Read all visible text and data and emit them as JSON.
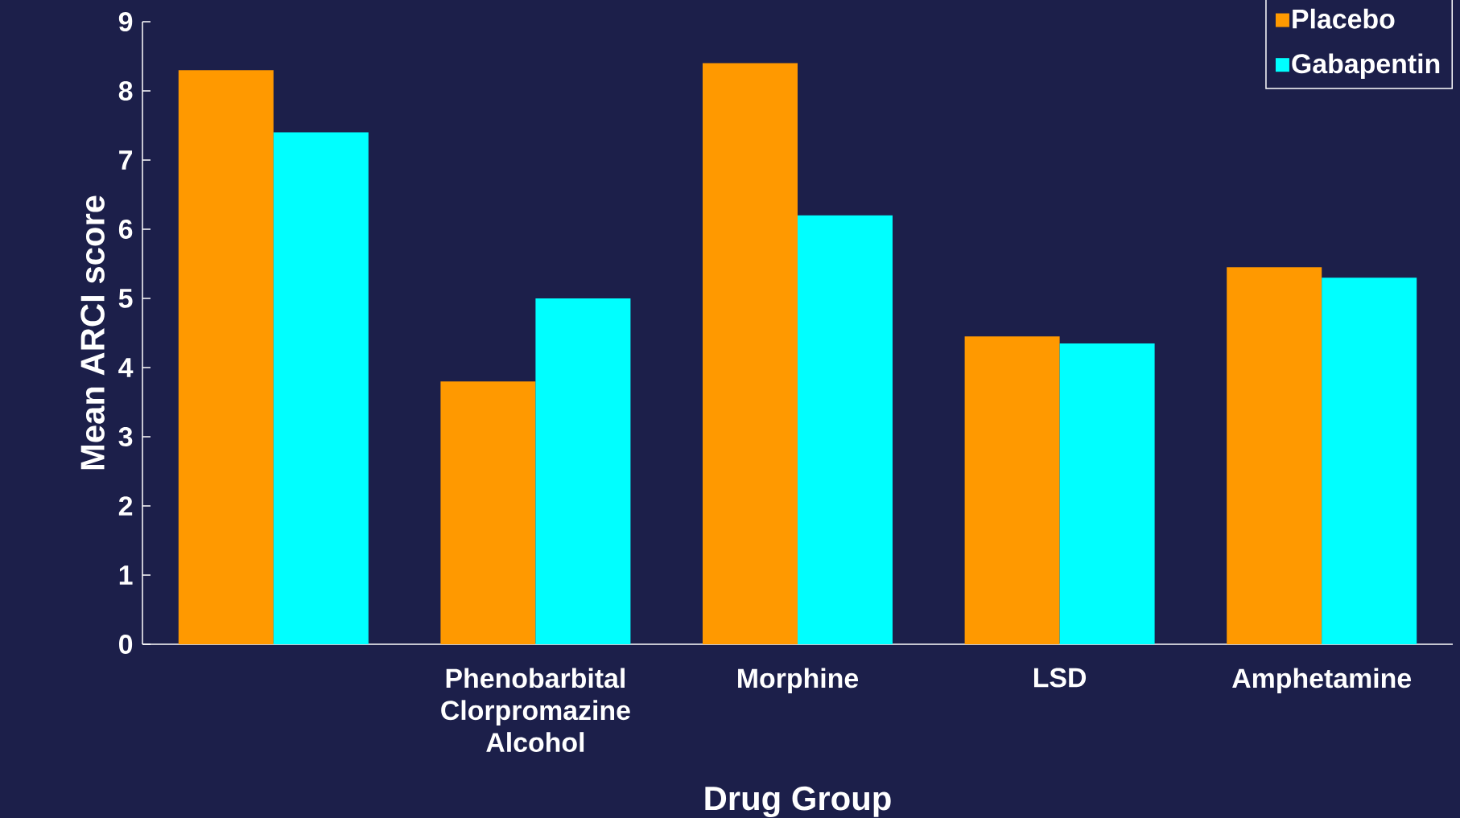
{
  "chart_data": {
    "type": "bar",
    "xlabel": "Drug Group",
    "ylabel": "Mean ARCI score",
    "categories": [
      null,
      "Phenobarbital Clorpromazine Alcohol",
      "Morphine",
      "LSD",
      "Amphetamine"
    ],
    "series": [
      {
        "name": "Placebo",
        "color": "#ff9900",
        "values": [
          8.3,
          3.8,
          8.4,
          4.45,
          5.45
        ]
      },
      {
        "name": "Gabapentin",
        "color": "#00ffff",
        "values": [
          7.4,
          5.0,
          6.2,
          4.35,
          5.3
        ]
      }
    ],
    "ylim": [
      0,
      9
    ],
    "yticks": [
      0,
      1,
      2,
      3,
      4,
      5,
      6,
      7,
      8,
      9
    ],
    "legend": "top right"
  }
}
